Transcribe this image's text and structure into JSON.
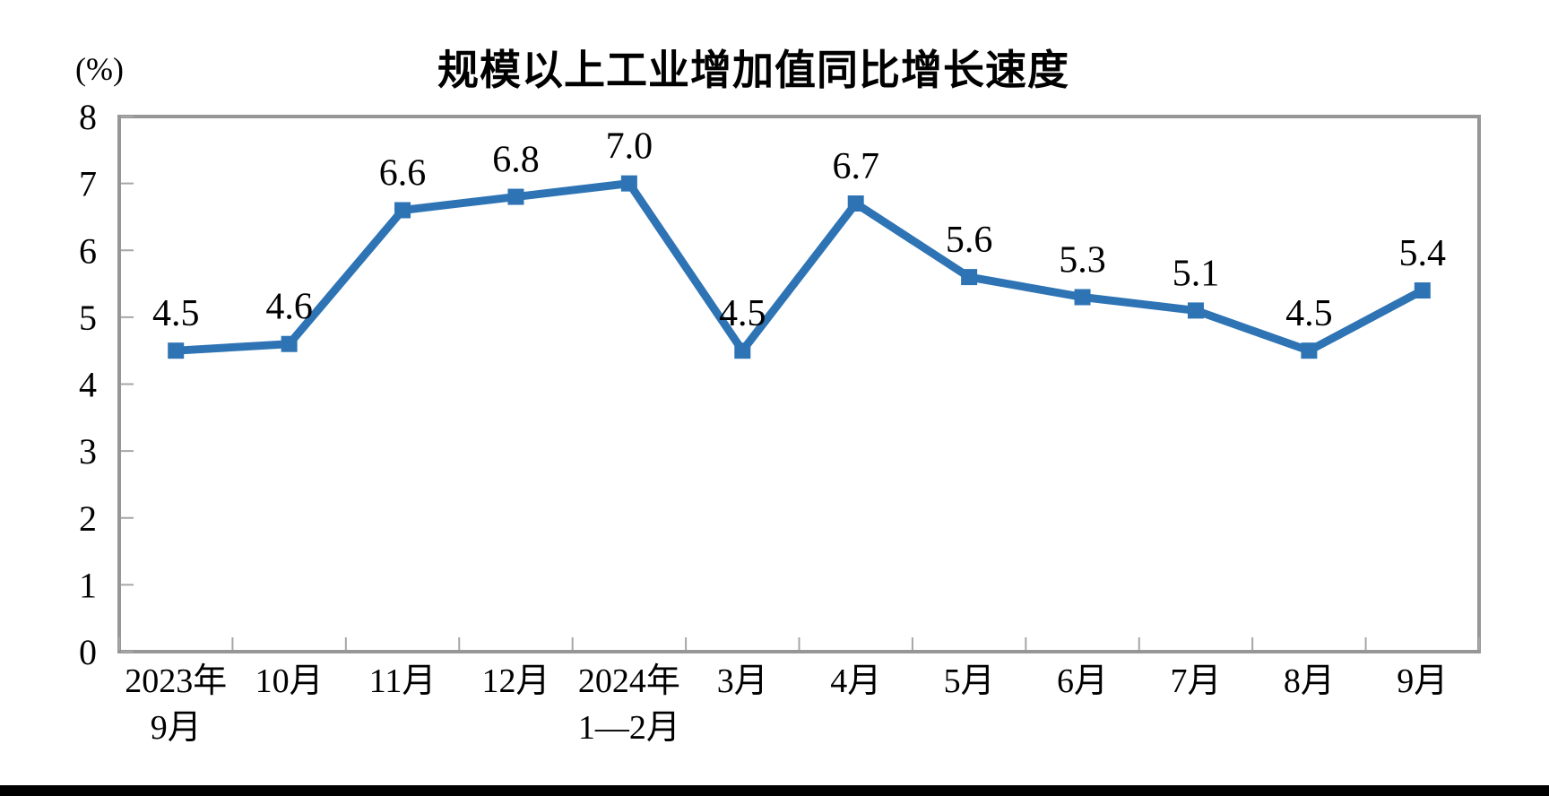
{
  "page": {
    "background_color": "#ffffff",
    "bottom_bar_color": "#000000"
  },
  "chart_data": {
    "type": "line",
    "title": "规模以上工业增加值同比增长速度",
    "unit_label": "(%)",
    "xlabel": "",
    "ylabel": "(%)",
    "categories": [
      [
        "2023年",
        "9月"
      ],
      [
        "10月"
      ],
      [
        "11月"
      ],
      [
        "12月"
      ],
      [
        "2024年",
        "1—2月"
      ],
      [
        "3月"
      ],
      [
        "4月"
      ],
      [
        "5月"
      ],
      [
        "6月"
      ],
      [
        "7月"
      ],
      [
        "8月"
      ],
      [
        "9月"
      ]
    ],
    "values": [
      4.5,
      4.6,
      6.6,
      6.8,
      7.0,
      4.5,
      6.7,
      5.6,
      5.3,
      5.1,
      4.5,
      5.4
    ],
    "point_labels": [
      "4.5",
      "4.6",
      "6.6",
      "6.8",
      "7.0",
      "4.5",
      "6.7",
      "5.6",
      "5.3",
      "5.1",
      "4.5",
      "5.4"
    ],
    "ylim": [
      0,
      8
    ],
    "yticks": [
      0,
      1,
      2,
      3,
      4,
      5,
      6,
      7,
      8
    ],
    "grid": "off",
    "legend": "none",
    "marker": "square",
    "colors": {
      "line": "#2E74B5",
      "frame": "#969696",
      "tick": "#A6A6A6",
      "text": "#000000"
    }
  }
}
